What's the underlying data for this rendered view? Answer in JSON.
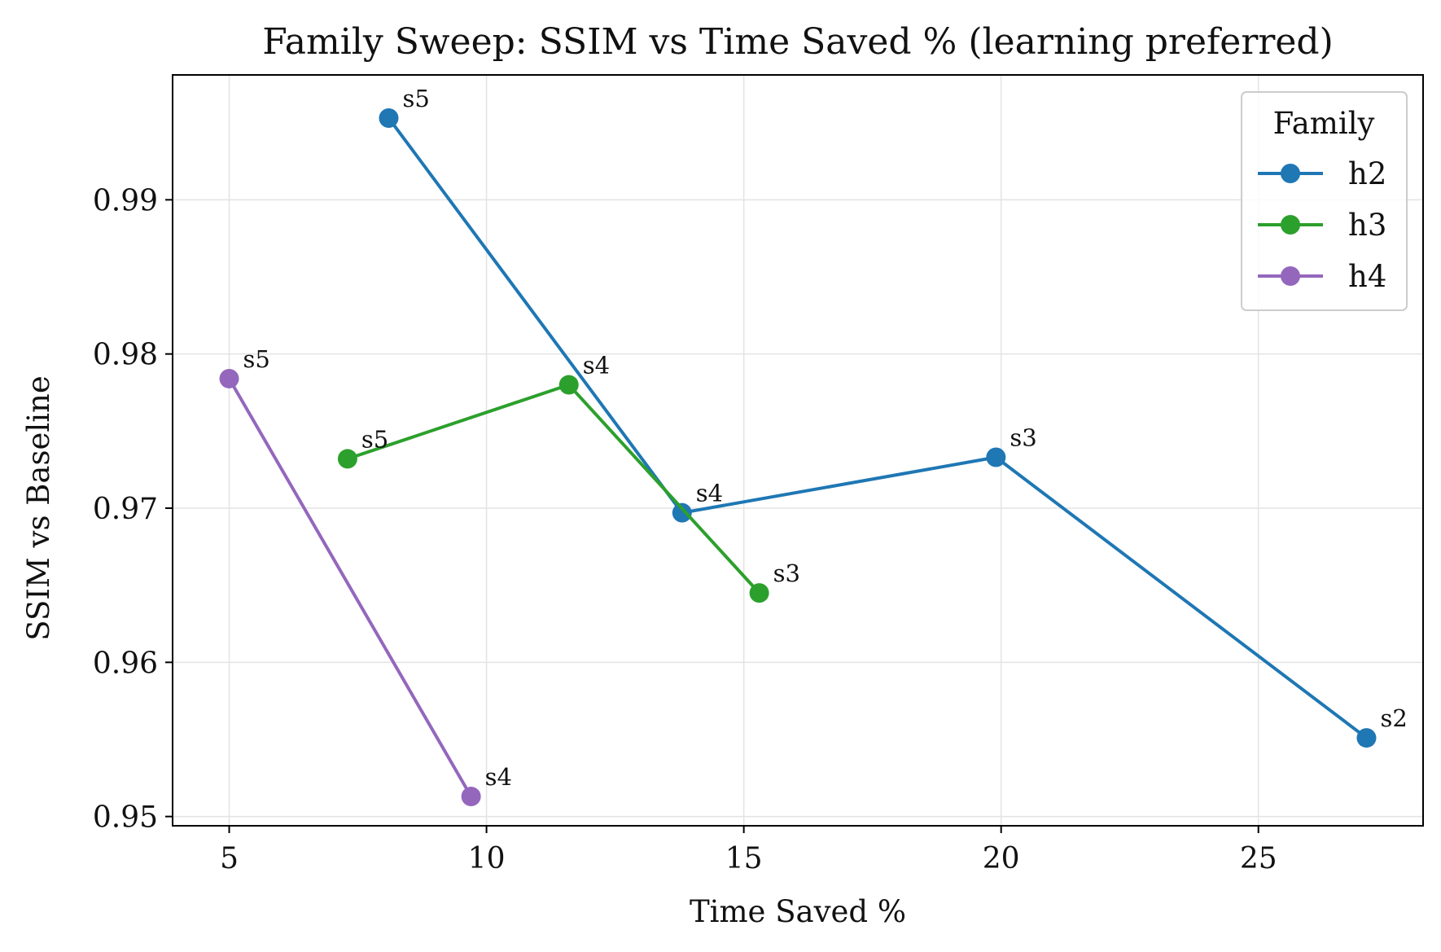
{
  "chart_data": {
    "type": "line",
    "title": "Family Sweep: SSIM vs Time Saved % (learning preferred)",
    "xlabel": "Time Saved %",
    "ylabel": "SSIM vs Baseline",
    "xlim": [
      3.9,
      28.2
    ],
    "ylim": [
      0.9494,
      0.9981
    ],
    "xticks": [
      5,
      10,
      15,
      20,
      25
    ],
    "xtick_labels": [
      "5",
      "10",
      "15",
      "20",
      "25"
    ],
    "yticks": [
      0.95,
      0.96,
      0.97,
      0.98,
      0.99
    ],
    "ytick_labels": [
      "0.95",
      "0.96",
      "0.97",
      "0.98",
      "0.99"
    ],
    "grid": true,
    "legend": {
      "title": "Family",
      "placement": "top-right"
    },
    "series": [
      {
        "name": "h2",
        "color": "#1f77b4",
        "points": [
          {
            "x": 8.1,
            "y": 0.9953,
            "label": "s5"
          },
          {
            "x": 13.8,
            "y": 0.9697,
            "label": "s4"
          },
          {
            "x": 19.9,
            "y": 0.9733,
            "label": "s3"
          },
          {
            "x": 27.1,
            "y": 0.9551,
            "label": "s2"
          }
        ]
      },
      {
        "name": "h3",
        "color": "#2ca02c",
        "points": [
          {
            "x": 7.3,
            "y": 0.9732,
            "label": "s5"
          },
          {
            "x": 11.6,
            "y": 0.978,
            "label": "s4"
          },
          {
            "x": 15.3,
            "y": 0.9645,
            "label": "s3"
          }
        ]
      },
      {
        "name": "h4",
        "color": "#9467bd",
        "points": [
          {
            "x": 5.0,
            "y": 0.9784,
            "label": "s5"
          },
          {
            "x": 9.7,
            "y": 0.9513,
            "label": "s4"
          }
        ]
      }
    ]
  }
}
